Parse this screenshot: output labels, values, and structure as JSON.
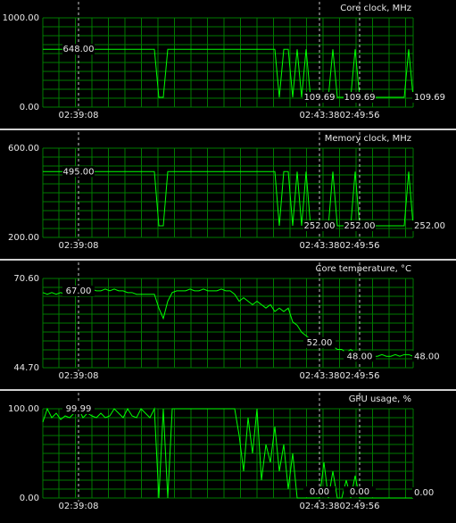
{
  "chart_data": [
    {
      "type": "line",
      "title": "Core clock, MHz",
      "color": "#00ff00",
      "grid": true,
      "xlim": [
        0,
        83
      ],
      "ylim": [
        0,
        1000
      ],
      "yticks": [
        {
          "value": 0,
          "label": "0.00"
        },
        {
          "value": 1000,
          "label": "1000.00"
        }
      ],
      "values": [
        648,
        648,
        648,
        648,
        648,
        648,
        648,
        648,
        648,
        648,
        648,
        648,
        648,
        648,
        648,
        648,
        648,
        648,
        648,
        648,
        648,
        648,
        648,
        648,
        648,
        648,
        109.69,
        109.69,
        648,
        648,
        648,
        648,
        648,
        648,
        648,
        648,
        648,
        648,
        648,
        648,
        648,
        648,
        648,
        648,
        648,
        648,
        648,
        648,
        648,
        648,
        648,
        648,
        648,
        109.69,
        648,
        648,
        109.69,
        648,
        109.69,
        648,
        109.69,
        109.69,
        109.69,
        109.69,
        109.69,
        648,
        109.69,
        109.69,
        109.69,
        109.69,
        648,
        109.69,
        109.69,
        109.69,
        109.69,
        109.69,
        109.69,
        109.69,
        109.69,
        109.69,
        109.69,
        109.69,
        648,
        109.69
      ],
      "end_label": "109.69",
      "markers": [
        {
          "x": 8,
          "label": "02:39:08",
          "value": 648,
          "value_label": "648.00"
        },
        {
          "x": 62,
          "label": "02:43:38",
          "value": 109.69,
          "value_label": "109.69"
        },
        {
          "x": 71,
          "label": "02:49:56",
          "value": 109.69,
          "value_label": "109.69"
        }
      ]
    },
    {
      "type": "line",
      "title": "Memory clock, MHz",
      "color": "#00ff00",
      "grid": true,
      "xlim": [
        0,
        83
      ],
      "ylim": [
        200,
        600
      ],
      "yticks": [
        {
          "value": 200,
          "label": "200.00"
        },
        {
          "value": 600,
          "label": "600.00"
        }
      ],
      "values": [
        495,
        495,
        495,
        495,
        495,
        495,
        495,
        495,
        495,
        495,
        495,
        495,
        495,
        495,
        495,
        495,
        495,
        495,
        495,
        495,
        495,
        495,
        495,
        495,
        495,
        495,
        252,
        252,
        495,
        495,
        495,
        495,
        495,
        495,
        495,
        495,
        495,
        495,
        495,
        495,
        495,
        495,
        495,
        495,
        495,
        495,
        495,
        495,
        495,
        495,
        495,
        495,
        495,
        252,
        495,
        495,
        252,
        495,
        252,
        495,
        252,
        252,
        252,
        252,
        252,
        495,
        252,
        252,
        252,
        252,
        495,
        252,
        252,
        252,
        252,
        252,
        252,
        252,
        252,
        252,
        252,
        252,
        495,
        252
      ],
      "end_label": "252.00",
      "markers": [
        {
          "x": 8,
          "label": "02:39:08",
          "value": 495,
          "value_label": "495.00"
        },
        {
          "x": 62,
          "label": "02:43:38",
          "value": 252,
          "value_label": "252.00"
        },
        {
          "x": 71,
          "label": "02:49:56",
          "value": 252,
          "value_label": "252.00"
        }
      ]
    },
    {
      "type": "line",
      "title": "Core temperature, °C",
      "color": "#00ff00",
      "grid": true,
      "xlim": [
        0,
        83
      ],
      "ylim": [
        44.7,
        70.6
      ],
      "yticks": [
        {
          "value": 44.7,
          "label": "44.70"
        },
        {
          "value": 70.6,
          "label": "70.60"
        }
      ],
      "values": [
        66.5,
        66,
        66.5,
        66,
        66.5,
        66,
        66.5,
        67,
        67,
        67.5,
        67,
        67.5,
        67,
        67,
        67.5,
        67,
        67.5,
        67,
        67,
        66.5,
        66.5,
        66,
        66,
        66,
        66,
        66,
        62,
        59,
        64,
        66.5,
        67,
        67,
        67,
        67.5,
        67,
        67,
        67.5,
        67,
        67,
        67,
        67.5,
        67,
        67,
        66,
        64,
        65,
        64,
        63,
        64,
        63,
        62,
        63,
        61,
        62,
        61,
        62,
        58,
        57,
        55,
        54,
        53,
        52,
        52,
        51,
        52,
        51,
        50,
        50,
        49,
        50,
        49,
        48,
        48,
        49,
        48,
        48,
        48.5,
        48,
        48,
        48.5,
        48,
        48.5,
        48.5,
        48
      ],
      "end_label": "48.00",
      "markers": [
        {
          "x": 8,
          "label": "02:39:08",
          "value": 67,
          "value_label": "67.00"
        },
        {
          "x": 62,
          "label": "02:43:38",
          "value": 52,
          "value_label": "52.00"
        },
        {
          "x": 71,
          "label": "02:49:56",
          "value": 48,
          "value_label": "48.00"
        }
      ]
    },
    {
      "type": "line",
      "title": "GPU usage, %",
      "color": "#00ff00",
      "grid": true,
      "xlim": [
        0,
        83
      ],
      "ylim": [
        0,
        100
      ],
      "yticks": [
        {
          "value": 0,
          "label": "0.00"
        },
        {
          "value": 100,
          "label": "100.00"
        }
      ],
      "values": [
        85,
        99.99,
        90,
        95,
        88,
        92,
        90,
        95,
        99.99,
        90,
        95,
        92,
        90,
        95,
        90,
        92,
        99.99,
        95,
        90,
        99.99,
        92,
        90,
        99.99,
        95,
        90,
        99.99,
        0,
        99.99,
        0,
        99.99,
        99.99,
        99.99,
        99.99,
        99.99,
        99.99,
        99.99,
        99.99,
        99.99,
        99.99,
        99.99,
        99.99,
        99.99,
        99.99,
        99.99,
        70,
        30,
        90,
        50,
        99.99,
        20,
        60,
        40,
        80,
        30,
        60,
        10,
        50,
        0,
        0,
        0,
        0,
        0,
        0,
        40,
        0,
        30,
        0,
        0,
        20,
        0,
        25,
        0,
        0,
        0,
        0,
        0,
        0,
        0,
        0,
        0,
        0,
        0,
        0,
        0
      ],
      "end_label": "0.00",
      "markers": [
        {
          "x": 8,
          "label": "02:39:08",
          "value": 99.99,
          "value_label": "99.99"
        },
        {
          "x": 62,
          "label": "02:43:38",
          "value": 0,
          "value_label": "0.00"
        },
        {
          "x": 71,
          "label": "02:49:56",
          "value": 0,
          "value_label": "0.00"
        }
      ]
    }
  ]
}
